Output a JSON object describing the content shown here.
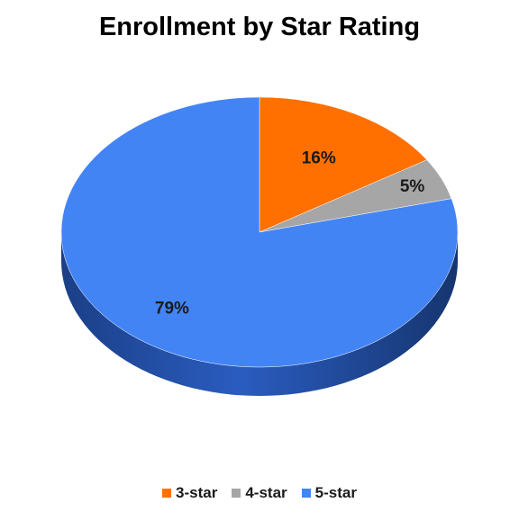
{
  "chart_data": {
    "type": "pie",
    "title": "Enrollment by Star Rating",
    "categories": [
      "3-star",
      "4-star",
      "5-star"
    ],
    "values": [
      16,
      5,
      79
    ],
    "value_labels": [
      "16%",
      "5%",
      "79%"
    ],
    "colors": [
      "#ff7000",
      "#a6a6a6",
      "#4384f5"
    ],
    "side_colors": [
      "#b84e00",
      "#777777",
      "#1f4ea8"
    ],
    "start_angle_deg": 0,
    "direction": "clockwise",
    "legend_position": "bottom",
    "style": "3d"
  }
}
